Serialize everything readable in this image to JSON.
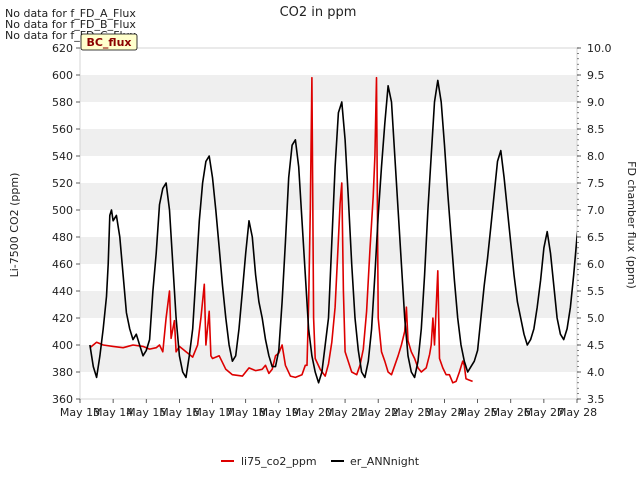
{
  "notices": [
    "No data for f_FD_A_Flux",
    "No data for f_FD_B_Flux",
    "No data for f_FD_C_Flux"
  ],
  "site_badge": "BC_flux",
  "colors": {
    "li75_co2_ppm": "#dd0000",
    "er_ANNnight": "#000000",
    "band": "#efefef"
  },
  "chart_data": {
    "type": "line",
    "title": "CO2 in ppm",
    "xlabel": "",
    "ylabel": "Li-7500 CO2 (ppm)",
    "y2label": "FD chamber flux (ppm)",
    "xlim": [
      13,
      28
    ],
    "ylim": [
      360,
      620
    ],
    "y2lim": [
      3.5,
      10.0
    ],
    "xticks": [
      13,
      14,
      15,
      16,
      17,
      18,
      19,
      20,
      21,
      22,
      23,
      24,
      25,
      26,
      27,
      28
    ],
    "xtick_labels": [
      "May 13",
      "May 14",
      "May 15",
      "May 16",
      "May 17",
      "May 18",
      "May 19",
      "May 20",
      "May 21",
      "May 22",
      "May 23",
      "May 24",
      "May 25",
      "May 26",
      "May 27",
      "May 28"
    ],
    "yticks": [
      360,
      380,
      400,
      420,
      440,
      460,
      480,
      500,
      520,
      540,
      560,
      580,
      600,
      620
    ],
    "y2ticks": [
      "3.5",
      "4.0",
      "4.5",
      "5.0",
      "5.5",
      "6.0",
      "6.5",
      "7.0",
      "7.5",
      "8.0",
      "8.5",
      "9.0",
      "9.5",
      "10.0"
    ],
    "grid": "horizontal bands",
    "legend_position": "bottom-center",
    "series": [
      {
        "name": "li75_co2_ppm",
        "axis": "left",
        "points": [
          [
            13.3,
            398
          ],
          [
            13.5,
            402
          ],
          [
            13.7,
            400
          ],
          [
            14.0,
            399
          ],
          [
            14.3,
            398
          ],
          [
            14.6,
            400
          ],
          [
            14.9,
            399
          ],
          [
            15.1,
            397
          ],
          [
            15.3,
            398
          ],
          [
            15.4,
            400
          ],
          [
            15.5,
            395
          ],
          [
            15.6,
            420
          ],
          [
            15.7,
            440
          ],
          [
            15.75,
            405
          ],
          [
            15.85,
            418
          ],
          [
            15.9,
            395
          ],
          [
            16.0,
            399
          ],
          [
            16.2,
            395
          ],
          [
            16.4,
            391
          ],
          [
            16.55,
            400
          ],
          [
            16.65,
            420
          ],
          [
            16.75,
            445
          ],
          [
            16.8,
            400
          ],
          [
            16.9,
            425
          ],
          [
            16.95,
            392
          ],
          [
            17.0,
            390
          ],
          [
            17.2,
            392
          ],
          [
            17.4,
            382
          ],
          [
            17.6,
            378
          ],
          [
            17.9,
            377
          ],
          [
            18.1,
            383
          ],
          [
            18.3,
            381
          ],
          [
            18.5,
            382
          ],
          [
            18.6,
            385
          ],
          [
            18.7,
            379
          ],
          [
            18.8,
            382
          ],
          [
            18.9,
            392
          ],
          [
            19.0,
            394
          ],
          [
            19.1,
            400
          ],
          [
            19.2,
            385
          ],
          [
            19.35,
            377
          ],
          [
            19.5,
            376
          ],
          [
            19.7,
            378
          ],
          [
            19.8,
            385
          ],
          [
            19.85,
            385
          ],
          [
            19.9,
            430
          ],
          [
            19.95,
            500
          ],
          [
            20.0,
            598
          ],
          [
            20.05,
            420
          ],
          [
            20.1,
            390
          ],
          [
            20.25,
            382
          ],
          [
            20.4,
            377
          ],
          [
            20.5,
            386
          ],
          [
            20.6,
            402
          ],
          [
            20.7,
            428
          ],
          [
            20.8,
            478
          ],
          [
            20.85,
            505
          ],
          [
            20.9,
            520
          ],
          [
            20.95,
            440
          ],
          [
            21.0,
            395
          ],
          [
            21.2,
            380
          ],
          [
            21.35,
            378
          ],
          [
            21.45,
            385
          ],
          [
            21.55,
            397
          ],
          [
            21.65,
            425
          ],
          [
            21.75,
            470
          ],
          [
            21.85,
            510
          ],
          [
            21.9,
            540
          ],
          [
            21.95,
            598
          ],
          [
            22.0,
            420
          ],
          [
            22.1,
            395
          ],
          [
            22.2,
            388
          ],
          [
            22.3,
            380
          ],
          [
            22.4,
            378
          ],
          [
            22.5,
            385
          ],
          [
            22.6,
            392
          ],
          [
            22.7,
            400
          ],
          [
            22.8,
            410
          ],
          [
            22.85,
            428
          ],
          [
            22.9,
            403
          ],
          [
            23.0,
            395
          ],
          [
            23.1,
            390
          ],
          [
            23.2,
            383
          ],
          [
            23.3,
            380
          ],
          [
            23.45,
            383
          ],
          [
            23.55,
            393
          ],
          [
            23.6,
            400
          ],
          [
            23.65,
            420
          ],
          [
            23.7,
            400
          ],
          [
            23.8,
            455
          ],
          [
            23.85,
            390
          ],
          [
            23.95,
            383
          ],
          [
            24.05,
            378
          ],
          [
            24.15,
            378
          ],
          [
            24.25,
            372
          ],
          [
            24.35,
            373
          ],
          [
            24.45,
            380
          ],
          [
            24.55,
            388
          ],
          [
            24.6,
            385
          ],
          [
            24.65,
            375
          ],
          [
            24.75,
            374
          ],
          [
            24.85,
            373
          ]
        ]
      },
      {
        "name": "er_ANNnight",
        "axis": "right",
        "points": [
          [
            13.3,
            4.5
          ],
          [
            13.4,
            4.1
          ],
          [
            13.5,
            3.9
          ],
          [
            13.6,
            4.3
          ],
          [
            13.7,
            4.8
          ],
          [
            13.8,
            5.4
          ],
          [
            13.85,
            6.0
          ],
          [
            13.9,
            6.9
          ],
          [
            13.95,
            7.0
          ],
          [
            14.0,
            6.8
          ],
          [
            14.1,
            6.9
          ],
          [
            14.2,
            6.5
          ],
          [
            14.3,
            5.8
          ],
          [
            14.4,
            5.1
          ],
          [
            14.5,
            4.8
          ],
          [
            14.6,
            4.6
          ],
          [
            14.7,
            4.7
          ],
          [
            14.8,
            4.5
          ],
          [
            14.9,
            4.3
          ],
          [
            15.0,
            4.4
          ],
          [
            15.1,
            4.6
          ],
          [
            15.2,
            5.5
          ],
          [
            15.3,
            6.2
          ],
          [
            15.4,
            7.1
          ],
          [
            15.5,
            7.4
          ],
          [
            15.6,
            7.5
          ],
          [
            15.7,
            7.0
          ],
          [
            15.8,
            6.0
          ],
          [
            15.9,
            5.0
          ],
          [
            16.0,
            4.3
          ],
          [
            16.1,
            4.0
          ],
          [
            16.2,
            3.9
          ],
          [
            16.3,
            4.3
          ],
          [
            16.4,
            4.8
          ],
          [
            16.5,
            5.8
          ],
          [
            16.6,
            6.8
          ],
          [
            16.7,
            7.5
          ],
          [
            16.8,
            7.9
          ],
          [
            16.9,
            8.0
          ],
          [
            17.0,
            7.6
          ],
          [
            17.1,
            7.0
          ],
          [
            17.2,
            6.3
          ],
          [
            17.3,
            5.6
          ],
          [
            17.4,
            5.0
          ],
          [
            17.5,
            4.5
          ],
          [
            17.6,
            4.2
          ],
          [
            17.7,
            4.3
          ],
          [
            17.8,
            4.8
          ],
          [
            17.9,
            5.5
          ],
          [
            18.0,
            6.2
          ],
          [
            18.1,
            6.8
          ],
          [
            18.2,
            6.5
          ],
          [
            18.3,
            5.8
          ],
          [
            18.4,
            5.3
          ],
          [
            18.5,
            5.0
          ],
          [
            18.6,
            4.6
          ],
          [
            18.7,
            4.3
          ],
          [
            18.8,
            4.1
          ],
          [
            18.9,
            4.1
          ],
          [
            19.0,
            4.4
          ],
          [
            19.1,
            5.3
          ],
          [
            19.2,
            6.4
          ],
          [
            19.3,
            7.6
          ],
          [
            19.4,
            8.2
          ],
          [
            19.5,
            8.3
          ],
          [
            19.6,
            7.8
          ],
          [
            19.7,
            6.8
          ],
          [
            19.8,
            5.8
          ],
          [
            19.9,
            4.8
          ],
          [
            20.0,
            4.3
          ],
          [
            20.1,
            4.0
          ],
          [
            20.2,
            3.8
          ],
          [
            20.3,
            4.0
          ],
          [
            20.4,
            4.5
          ],
          [
            20.5,
            5.0
          ],
          [
            20.6,
            6.4
          ],
          [
            20.7,
            7.8
          ],
          [
            20.8,
            8.8
          ],
          [
            20.9,
            9.0
          ],
          [
            21.0,
            8.3
          ],
          [
            21.1,
            7.2
          ],
          [
            21.2,
            6.0
          ],
          [
            21.3,
            5.0
          ],
          [
            21.4,
            4.4
          ],
          [
            21.5,
            4.0
          ],
          [
            21.6,
            3.9
          ],
          [
            21.7,
            4.2
          ],
          [
            21.8,
            4.8
          ],
          [
            21.9,
            5.8
          ],
          [
            22.0,
            6.9
          ],
          [
            22.1,
            7.8
          ],
          [
            22.2,
            8.6
          ],
          [
            22.3,
            9.3
          ],
          [
            22.4,
            9.0
          ],
          [
            22.5,
            8.0
          ],
          [
            22.6,
            7.0
          ],
          [
            22.7,
            6.0
          ],
          [
            22.8,
            5.0
          ],
          [
            22.9,
            4.3
          ],
          [
            23.0,
            4.0
          ],
          [
            23.1,
            3.9
          ],
          [
            23.2,
            4.2
          ],
          [
            23.3,
            4.8
          ],
          [
            23.4,
            5.8
          ],
          [
            23.5,
            7.0
          ],
          [
            23.6,
            8.0
          ],
          [
            23.7,
            9.0
          ],
          [
            23.8,
            9.4
          ],
          [
            23.9,
            9.0
          ],
          [
            24.0,
            8.2
          ],
          [
            24.1,
            7.3
          ],
          [
            24.2,
            6.5
          ],
          [
            24.3,
            5.7
          ],
          [
            24.4,
            5.0
          ],
          [
            24.5,
            4.5
          ],
          [
            24.6,
            4.2
          ],
          [
            24.7,
            4.0
          ],
          [
            24.8,
            4.1
          ],
          [
            24.9,
            4.2
          ],
          [
            25.0,
            4.4
          ],
          [
            25.1,
            5.0
          ],
          [
            25.2,
            5.6
          ],
          [
            25.3,
            6.1
          ],
          [
            25.4,
            6.7
          ],
          [
            25.5,
            7.3
          ],
          [
            25.6,
            7.9
          ],
          [
            25.7,
            8.1
          ],
          [
            25.8,
            7.6
          ],
          [
            25.9,
            7.0
          ],
          [
            26.0,
            6.4
          ],
          [
            26.1,
            5.8
          ],
          [
            26.2,
            5.3
          ],
          [
            26.3,
            5.0
          ],
          [
            26.4,
            4.7
          ],
          [
            26.5,
            4.5
          ],
          [
            26.6,
            4.6
          ],
          [
            26.7,
            4.8
          ],
          [
            26.8,
            5.2
          ],
          [
            26.9,
            5.7
          ],
          [
            27.0,
            6.3
          ],
          [
            27.1,
            6.6
          ],
          [
            27.2,
            6.2
          ],
          [
            27.3,
            5.6
          ],
          [
            27.4,
            5.0
          ],
          [
            27.5,
            4.7
          ],
          [
            27.6,
            4.6
          ],
          [
            27.7,
            4.8
          ],
          [
            27.8,
            5.2
          ],
          [
            27.9,
            5.8
          ],
          [
            28.0,
            6.5
          ],
          [
            28.1,
            7.0
          ],
          [
            28.2,
            6.8
          ],
          [
            28.3,
            6.2
          ],
          [
            28.4,
            5.6
          ],
          [
            28.5,
            5.0
          ]
        ]
      }
    ]
  }
}
